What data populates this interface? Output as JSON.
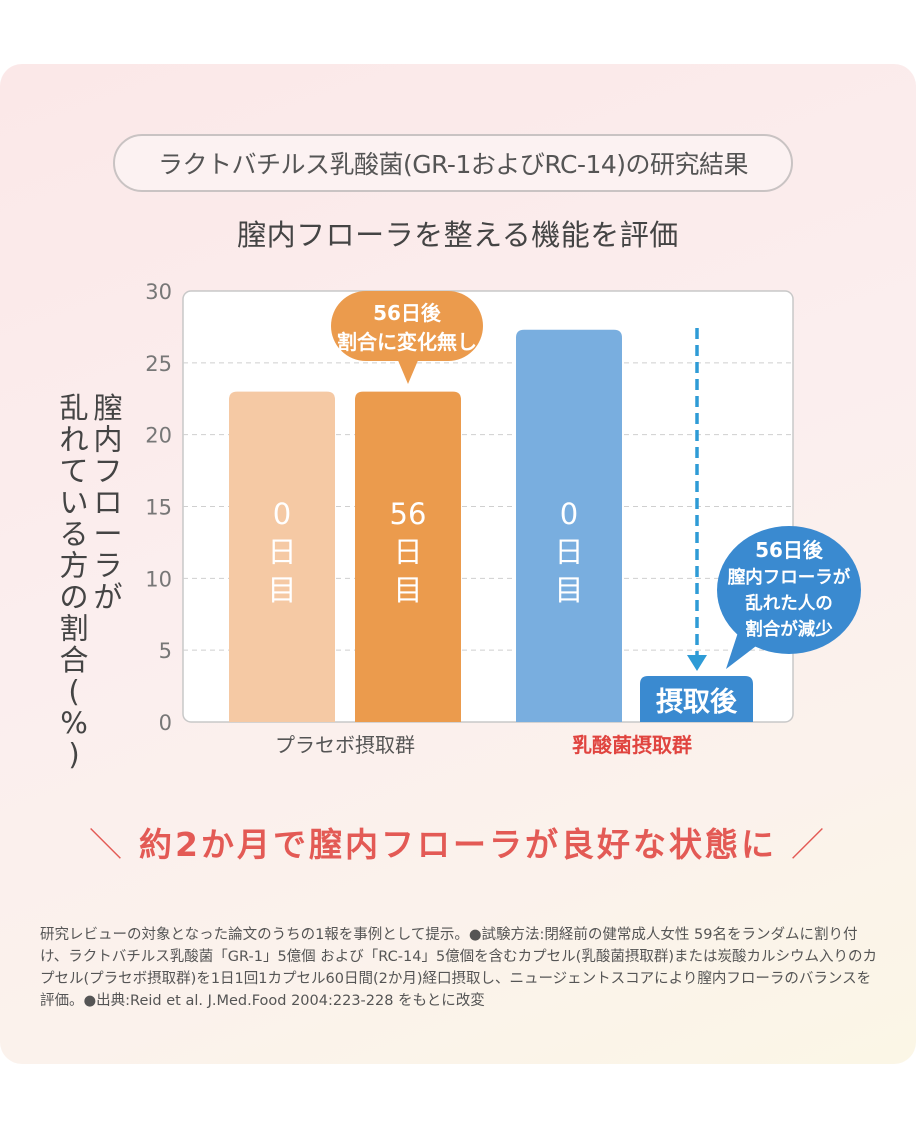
{
  "header": {
    "study_title": "ラクトバチルス乳酸菌(GR-1およびRC-14)の研究結果",
    "subtitle": "膣内フローラを整える機能を評価"
  },
  "chart_data": {
    "type": "bar",
    "ylabel": "膣内フローラが乱れている方の割合(%)",
    "ylabel_lines": [
      "膣内フローラが",
      "乱れている方の割合(%)"
    ],
    "ylim": [
      0,
      30
    ],
    "yticks": [
      0,
      5,
      10,
      15,
      20,
      25,
      30
    ],
    "grid": true,
    "groups": [
      {
        "label": "プラセボ摂取群",
        "color": "#555555"
      },
      {
        "label": "乳酸菌摂取群",
        "color": "#e0443f"
      }
    ],
    "bars": [
      {
        "group": 0,
        "label": "0日目",
        "label_chars": [
          "0",
          "日",
          "目"
        ],
        "value": 23,
        "color": "#f5c9a4"
      },
      {
        "group": 0,
        "label": "56日目",
        "label_chars": [
          "56",
          "日",
          "目"
        ],
        "value": 23,
        "color": "#eb9b4d"
      },
      {
        "group": 1,
        "label": "0日目",
        "label_chars": [
          "0",
          "日",
          "目"
        ],
        "value": 27.3,
        "color": "#79aedf"
      }
    ],
    "after_box": {
      "label": "摂取後",
      "value": 2,
      "color": "#3a8ad0"
    },
    "callout_placebo": [
      "56日後",
      "割合に変化無し"
    ],
    "callout_lactic": [
      "56日後",
      "膣内フローラが",
      "乱れた人の",
      "割合が減少"
    ],
    "arrow_color": "#2e9bd6"
  },
  "conclusion": {
    "slash_left": "＼",
    "text": "約2か月で膣内フローラが良好な状態に",
    "slash_right": "／"
  },
  "footnote": "研究レビューの対象となった論文のうちの1報を事例として提示。●試験方法:閉経前の健常成人女性 59名をランダムに割り付け、ラクトバチルス乳酸菌「GR-1」5億個 および「RC-14」5億個を含むカプセル(乳酸菌摂取群)または炭酸カルシウム入りのカプセル(プラセボ摂取群)を1日1回1カプセル60日間(2か月)経口摂取し、ニュージェントスコアにより膣内フローラのバランスを評価。●出典:Reid et al. J.Med.Food 2004:223-228 をもとに改変"
}
